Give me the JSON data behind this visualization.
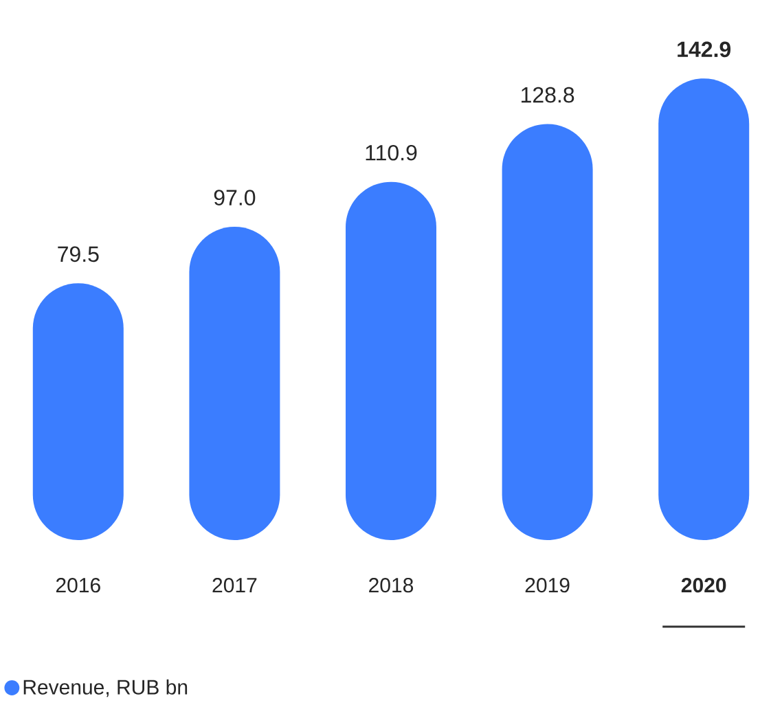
{
  "chart_data": {
    "type": "bar",
    "categories": [
      "2016",
      "2017",
      "2018",
      "2019",
      "2020"
    ],
    "series": [
      {
        "name": "Revenue, RUB bn",
        "color": "#3b7dff",
        "values": [
          79.5,
          97.0,
          110.9,
          128.8,
          142.9
        ],
        "value_labels": [
          "79.5",
          "97.0",
          "110.9",
          "128.8",
          "142.9"
        ]
      }
    ],
    "legend": "bottom left",
    "grid": false
  }
}
